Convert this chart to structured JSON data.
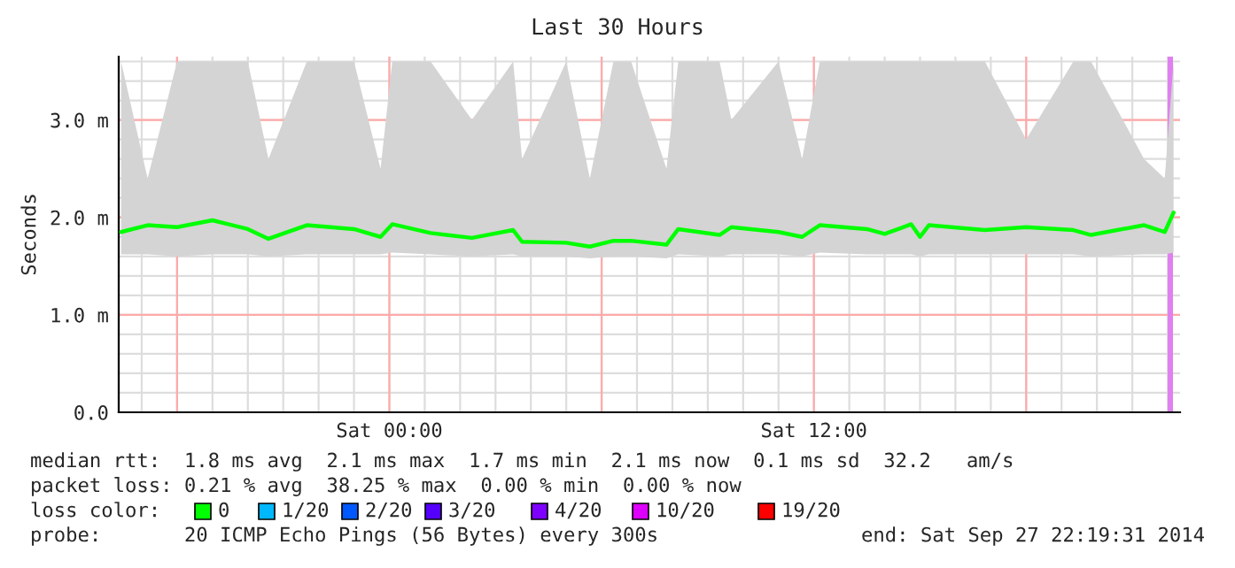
{
  "chart_data": {
    "type": "line",
    "title": "Last 30 Hours",
    "ylabel": "Seconds",
    "xlim": [
      "2014-09-26T16:21",
      "2014-09-27T22:21"
    ],
    "xticks": [
      {
        "value": "2014-09-26T18:00",
        "label": null
      },
      {
        "value": "2014-09-27T00:00",
        "label": "Sat 00:00"
      },
      {
        "value": "2014-09-27T06:00",
        "label": null
      },
      {
        "value": "2014-09-27T12:00",
        "label": "Sat 12:00"
      },
      {
        "value": "2014-09-27T18:00",
        "label": null
      }
    ],
    "ylim": [
      0,
      3.65
    ],
    "yticks": [
      {
        "value": 0,
        "label": "0.0"
      },
      {
        "value": 1,
        "label": "1.0 m"
      },
      {
        "value": 2,
        "label": "2.0 m"
      },
      {
        "value": 3,
        "label": "3.0 m"
      }
    ],
    "grid": true,
    "marker": "none",
    "line_style": "solid",
    "series": [
      {
        "color": "#00ff00",
        "x": [
          "2014-09-26T16:25",
          "2014-09-26T17:10",
          "2014-09-26T18:00",
          "2014-09-26T19:00",
          "2014-09-26T20:00",
          "2014-09-26T20:35",
          "2014-09-26T21:40",
          "2014-09-26T23:00",
          "2014-09-26T23:45",
          "2014-09-27T00:05",
          "2014-09-27T01:10",
          "2014-09-27T02:20",
          "2014-09-27T03:30",
          "2014-09-27T03:45",
          "2014-09-27T05:00",
          "2014-09-27T05:40",
          "2014-09-27T06:20",
          "2014-09-27T06:50",
          "2014-09-27T07:50",
          "2014-09-27T08:10",
          "2014-09-27T09:20",
          "2014-09-27T09:40",
          "2014-09-27T11:00",
          "2014-09-27T11:40",
          "2014-09-27T12:10",
          "2014-09-27T13:30",
          "2014-09-27T14:00",
          "2014-09-27T14:45",
          "2014-09-27T15:00",
          "2014-09-27T15:15",
          "2014-09-27T16:50",
          "2014-09-27T18:00",
          "2014-09-27T19:20",
          "2014-09-27T19:50",
          "2014-09-27T21:20",
          "2014-09-27T21:55",
          "2014-09-27T22:10"
        ],
        "values": [
          1.85,
          1.92,
          1.9,
          1.97,
          1.88,
          1.78,
          1.92,
          1.88,
          1.8,
          1.93,
          1.84,
          1.79,
          1.87,
          1.75,
          1.74,
          1.7,
          1.76,
          1.76,
          1.72,
          1.88,
          1.82,
          1.9,
          1.85,
          1.8,
          1.92,
          1.88,
          1.83,
          1.93,
          1.8,
          1.92,
          1.87,
          1.9,
          1.87,
          1.82,
          1.92,
          1.85,
          2.05
        ],
        "lower": [
          1.62,
          1.62,
          1.6,
          1.62,
          1.62,
          1.6,
          1.62,
          1.62,
          1.62,
          1.64,
          1.62,
          1.6,
          1.62,
          1.6,
          1.6,
          1.58,
          1.6,
          1.6,
          1.58,
          1.62,
          1.6,
          1.62,
          1.62,
          1.6,
          1.64,
          1.62,
          1.62,
          1.62,
          1.6,
          1.62,
          1.62,
          1.62,
          1.62,
          1.6,
          1.62,
          1.62,
          1.64
        ],
        "upper": [
          3.6,
          2.4,
          3.6,
          3.6,
          3.6,
          2.6,
          3.6,
          3.6,
          2.5,
          3.6,
          3.6,
          3.0,
          3.6,
          2.6,
          3.6,
          2.4,
          3.6,
          3.6,
          2.5,
          3.6,
          3.6,
          3.0,
          3.6,
          2.6,
          3.6,
          3.6,
          3.6,
          3.6,
          3.6,
          3.6,
          3.6,
          2.8,
          3.6,
          3.6,
          2.6,
          2.4,
          3.6
        ]
      }
    ],
    "bands": [
      {
        "axis": "x",
        "from": "2014-09-27T22:00",
        "to": "2014-09-27T22:09",
        "color": "#e080f0"
      }
    ],
    "annotations": [
      "median rtt:  1.8 ms avg  2.1 ms max  1.7 ms min  2.1 ms now  0.1 ms sd  32.2   am/s",
      "packet loss: 0.21 % avg  38.25 % max  0.00 % min  0.00 % now",
      "loss color:",
      "0",
      "1/20",
      "2/20",
      "3/20",
      "4/20",
      "10/20",
      "19/20",
      "probe:       20 ICMP Echo Pings (56 Bytes) every 300s",
      "end: Sat Sep 27 22:19:31 2014"
    ]
  }
}
